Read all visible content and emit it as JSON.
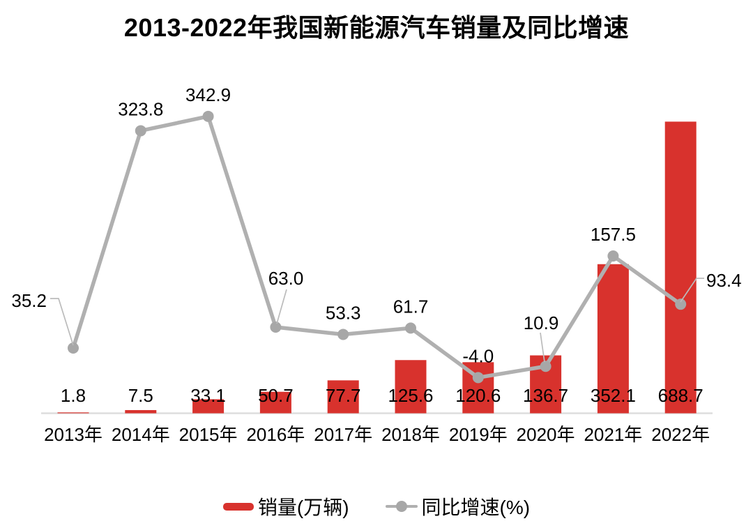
{
  "title": "2013-2022年我国新能源汽车销量及同比增速",
  "chart_data": {
    "type": "combo-bar-line",
    "title": "2013-2022年我国新能源汽车销量及同比增速",
    "categories": [
      "2013年",
      "2014年",
      "2015年",
      "2016年",
      "2017年",
      "2018年",
      "2019年",
      "2020年",
      "2021年",
      "2022年"
    ],
    "series": [
      {
        "name": "销量(万辆)",
        "type": "bar",
        "unit": "万辆",
        "color": "#d8322d",
        "values": [
          1.8,
          7.5,
          33.1,
          50.7,
          77.7,
          125.6,
          120.6,
          136.7,
          352.1,
          688.7
        ],
        "labels": [
          "1.8",
          "7.5",
          "33.1",
          "50.7",
          "77.7",
          "125.6",
          "120.6",
          "136.7",
          "352.1",
          "688.7"
        ]
      },
      {
        "name": "同比增速(%)",
        "type": "line",
        "unit": "%",
        "color": "#b0b0b0",
        "marker_color": "#a7a7a7",
        "values": [
          35.2,
          323.8,
          342.9,
          63.0,
          53.3,
          61.7,
          -4.0,
          10.9,
          157.5,
          93.4
        ],
        "labels": [
          "35.2",
          "323.8",
          "342.9",
          "63.0",
          "53.3",
          "61.7",
          "-4.0",
          "10.9",
          "157.5",
          "93.4"
        ]
      }
    ],
    "legend": {
      "position": "bottom",
      "entries": [
        "销量(万辆)",
        "同比增速(%)"
      ]
    },
    "axes": {
      "x_labels_visible": true,
      "y_axes_visible": false,
      "dual_axis": true,
      "bar_axis_range": [
        0,
        700
      ],
      "line_axis_range": [
        -50,
        400
      ]
    },
    "grid": false
  },
  "colors": {
    "bar": "#d8322d",
    "line": "#b0b0b0",
    "marker": "#a7a7a7",
    "baseline": "#dddddd",
    "callout": "#bbbbbb",
    "text": "#000000",
    "background": "#ffffff"
  }
}
